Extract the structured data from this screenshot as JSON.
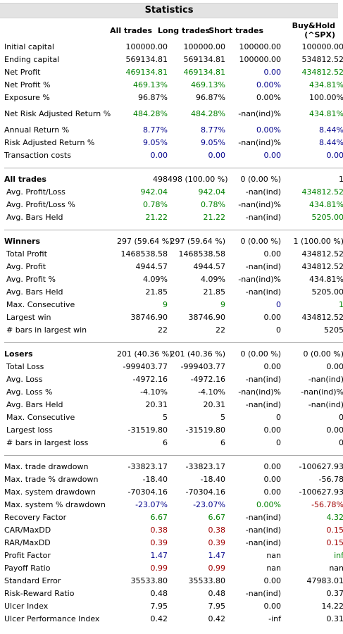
{
  "title": "Statistics",
  "headers": {
    "all": "All trades",
    "long": "Long trades",
    "short": "Short trades",
    "bh_line1": "Buy&Hold",
    "bh_line2": "(^SPX)"
  },
  "colors": {
    "black": "#000000",
    "green": "#008000",
    "blue": "#00008b",
    "red": "#a00000",
    "title_bg": "#e3e3e3"
  },
  "rows": [
    {
      "label": "Initial capital",
      "values": [
        "100000.00",
        "100000.00",
        "100000.00",
        "100000.00"
      ],
      "colors": [
        "k",
        "k",
        "k",
        "k"
      ]
    },
    {
      "label": "Ending capital",
      "values": [
        "569134.81",
        "569134.81",
        "100000.00",
        "534812.52"
      ],
      "colors": [
        "k",
        "k",
        "k",
        "k"
      ]
    },
    {
      "label": "Net Profit",
      "values": [
        "469134.81",
        "469134.81",
        "0.00",
        "434812.52"
      ],
      "colors": [
        "g",
        "g",
        "b",
        "g"
      ]
    },
    {
      "label": "Net Profit %",
      "values": [
        "469.13%",
        "469.13%",
        "0.00%",
        "434.81%"
      ],
      "colors": [
        "g",
        "g",
        "b",
        "g"
      ]
    },
    {
      "label": "Exposure %",
      "values": [
        "96.87%",
        "96.87%",
        "0.00%",
        "100.00%"
      ],
      "colors": [
        "k",
        "k",
        "k",
        "k"
      ]
    },
    {
      "label": "Net Risk Adjusted Return %",
      "values": [
        "484.28%",
        "484.28%",
        "-nan(ind)%",
        "434.81%"
      ],
      "colors": [
        "g",
        "g",
        "k",
        "g"
      ],
      "tall": true
    },
    {
      "label": "Annual Return %",
      "values": [
        "8.77%",
        "8.77%",
        "0.00%",
        "8.44%"
      ],
      "colors": [
        "b",
        "b",
        "b",
        "b"
      ]
    },
    {
      "label": "Risk Adjusted Return %",
      "values": [
        "9.05%",
        "9.05%",
        "-nan(ind)%",
        "8.44%"
      ],
      "colors": [
        "b",
        "b",
        "k",
        "b"
      ]
    },
    {
      "label": "Transaction costs",
      "values": [
        "0.00",
        "0.00",
        "0.00",
        "0.00"
      ],
      "colors": [
        "b",
        "b",
        "b",
        "b"
      ]
    },
    {
      "sep": true
    },
    {
      "label": "All trades",
      "values": [
        "498",
        "498 (100.00 %)",
        "0 (0.00 %)",
        "1"
      ],
      "colors": [
        "k",
        "k",
        "k",
        "k"
      ],
      "bold": true
    },
    {
      "label": "Avg. Profit/Loss",
      "values": [
        "942.04",
        "942.04",
        "-nan(ind)",
        "434812.52"
      ],
      "colors": [
        "g",
        "g",
        "k",
        "g"
      ],
      "sub": true
    },
    {
      "label": "Avg. Profit/Loss %",
      "values": [
        "0.78%",
        "0.78%",
        "-nan(ind)%",
        "434.81%"
      ],
      "colors": [
        "g",
        "g",
        "k",
        "g"
      ],
      "sub": true
    },
    {
      "label": "Avg. Bars Held",
      "values": [
        "21.22",
        "21.22",
        "-nan(ind)",
        "5205.00"
      ],
      "colors": [
        "g",
        "g",
        "k",
        "g"
      ],
      "sub": true
    },
    {
      "sep": true
    },
    {
      "label": "Winners",
      "values": [
        "297 (59.64 %)",
        "297 (59.64 %)",
        "0 (0.00 %)",
        "1 (100.00 %)"
      ],
      "colors": [
        "k",
        "k",
        "k",
        "k"
      ],
      "bold": true
    },
    {
      "label": "Total Profit",
      "values": [
        "1468538.58",
        "1468538.58",
        "0.00",
        "434812.52"
      ],
      "colors": [
        "k",
        "k",
        "k",
        "k"
      ],
      "sub": true
    },
    {
      "label": "Avg. Profit",
      "values": [
        "4944.57",
        "4944.57",
        "-nan(ind)",
        "434812.52"
      ],
      "colors": [
        "k",
        "k",
        "k",
        "k"
      ],
      "sub": true
    },
    {
      "label": "Avg. Profit %",
      "values": [
        "4.09%",
        "4.09%",
        "-nan(ind)%",
        "434.81%"
      ],
      "colors": [
        "k",
        "k",
        "k",
        "k"
      ],
      "sub": true
    },
    {
      "label": "Avg. Bars Held",
      "values": [
        "21.85",
        "21.85",
        "-nan(ind)",
        "5205.00"
      ],
      "colors": [
        "k",
        "k",
        "k",
        "k"
      ],
      "sub": true
    },
    {
      "label": "Max. Consecutive",
      "values": [
        "9",
        "9",
        "0",
        "1"
      ],
      "colors": [
        "g",
        "g",
        "b",
        "g"
      ],
      "sub": true
    },
    {
      "label": "Largest win",
      "values": [
        "38746.90",
        "38746.90",
        "0.00",
        "434812.52"
      ],
      "colors": [
        "k",
        "k",
        "k",
        "k"
      ],
      "sub": true
    },
    {
      "label": "# bars in largest win",
      "values": [
        "22",
        "22",
        "0",
        "5205"
      ],
      "colors": [
        "k",
        "k",
        "k",
        "k"
      ],
      "sub": true
    },
    {
      "sep": true
    },
    {
      "label": "Losers",
      "values": [
        "201 (40.36 %)",
        "201 (40.36 %)",
        "0 (0.00 %)",
        "0 (0.00 %)"
      ],
      "colors": [
        "k",
        "k",
        "k",
        "k"
      ],
      "bold": true
    },
    {
      "label": "Total Loss",
      "values": [
        "-999403.77",
        "-999403.77",
        "0.00",
        "0.00"
      ],
      "colors": [
        "k",
        "k",
        "k",
        "k"
      ],
      "sub": true
    },
    {
      "label": "Avg. Loss",
      "values": [
        "-4972.16",
        "-4972.16",
        "-nan(ind)",
        "-nan(ind)"
      ],
      "colors": [
        "k",
        "k",
        "k",
        "k"
      ],
      "sub": true
    },
    {
      "label": "Avg. Loss %",
      "values": [
        "-4.10%",
        "-4.10%",
        "-nan(ind)%",
        "-nan(ind)%"
      ],
      "colors": [
        "k",
        "k",
        "k",
        "k"
      ],
      "sub": true
    },
    {
      "label": "Avg. Bars Held",
      "values": [
        "20.31",
        "20.31",
        "-nan(ind)",
        "-nan(ind)"
      ],
      "colors": [
        "k",
        "k",
        "k",
        "k"
      ],
      "sub": true
    },
    {
      "label": "Max. Consecutive",
      "values": [
        "5",
        "5",
        "0",
        "0"
      ],
      "colors": [
        "k",
        "k",
        "k",
        "k"
      ],
      "sub": true
    },
    {
      "label": "Largest loss",
      "values": [
        "-31519.80",
        "-31519.80",
        "0.00",
        "0.00"
      ],
      "colors": [
        "k",
        "k",
        "k",
        "k"
      ],
      "sub": true
    },
    {
      "label": "# bars in largest loss",
      "values": [
        "6",
        "6",
        "0",
        "0"
      ],
      "colors": [
        "k",
        "k",
        "k",
        "k"
      ],
      "sub": true
    },
    {
      "sep": true
    },
    {
      "label": "Max. trade drawdown",
      "values": [
        "-33823.17",
        "-33823.17",
        "0.00",
        "-100627.93"
      ],
      "colors": [
        "k",
        "k",
        "k",
        "k"
      ]
    },
    {
      "label": "Max. trade % drawdown",
      "values": [
        "-18.40",
        "-18.40",
        "0.00",
        "-56.78"
      ],
      "colors": [
        "k",
        "k",
        "k",
        "k"
      ]
    },
    {
      "label": "Max. system drawdown",
      "values": [
        "-70304.16",
        "-70304.16",
        "0.00",
        "-100627.93"
      ],
      "colors": [
        "k",
        "k",
        "k",
        "k"
      ]
    },
    {
      "label": "Max. system % drawdown",
      "values": [
        "-23.07%",
        "-23.07%",
        "0.00%",
        "-56.78%"
      ],
      "colors": [
        "b",
        "b",
        "g",
        "r"
      ]
    },
    {
      "label": "Recovery Factor",
      "values": [
        "6.67",
        "6.67",
        "-nan(ind)",
        "4.32"
      ],
      "colors": [
        "g",
        "g",
        "k",
        "g"
      ]
    },
    {
      "label": "CAR/MaxDD",
      "values": [
        "0.38",
        "0.38",
        "-nan(ind)",
        "0.15"
      ],
      "colors": [
        "r",
        "r",
        "k",
        "r"
      ]
    },
    {
      "label": "RAR/MaxDD",
      "values": [
        "0.39",
        "0.39",
        "-nan(ind)",
        "0.15"
      ],
      "colors": [
        "r",
        "r",
        "k",
        "r"
      ]
    },
    {
      "label": "Profit Factor",
      "values": [
        "1.47",
        "1.47",
        "nan",
        "inf"
      ],
      "colors": [
        "b",
        "b",
        "k",
        "g"
      ]
    },
    {
      "label": "Payoff Ratio",
      "values": [
        "0.99",
        "0.99",
        "nan",
        "nan"
      ],
      "colors": [
        "r",
        "r",
        "k",
        "k"
      ]
    },
    {
      "label": "Standard Error",
      "values": [
        "35533.80",
        "35533.80",
        "0.00",
        "47983.01"
      ],
      "colors": [
        "k",
        "k",
        "k",
        "k"
      ]
    },
    {
      "label": "Risk-Reward Ratio",
      "values": [
        "0.48",
        "0.48",
        "-nan(ind)",
        "0.37"
      ],
      "colors": [
        "k",
        "k",
        "k",
        "k"
      ]
    },
    {
      "label": "Ulcer Index",
      "values": [
        "7.95",
        "7.95",
        "0.00",
        "14.22"
      ],
      "colors": [
        "k",
        "k",
        "k",
        "k"
      ]
    },
    {
      "label": "Ulcer Performance Index",
      "values": [
        "0.42",
        "0.42",
        "-inf",
        "0.31"
      ],
      "colors": [
        "k",
        "k",
        "k",
        "k"
      ]
    }
  ]
}
